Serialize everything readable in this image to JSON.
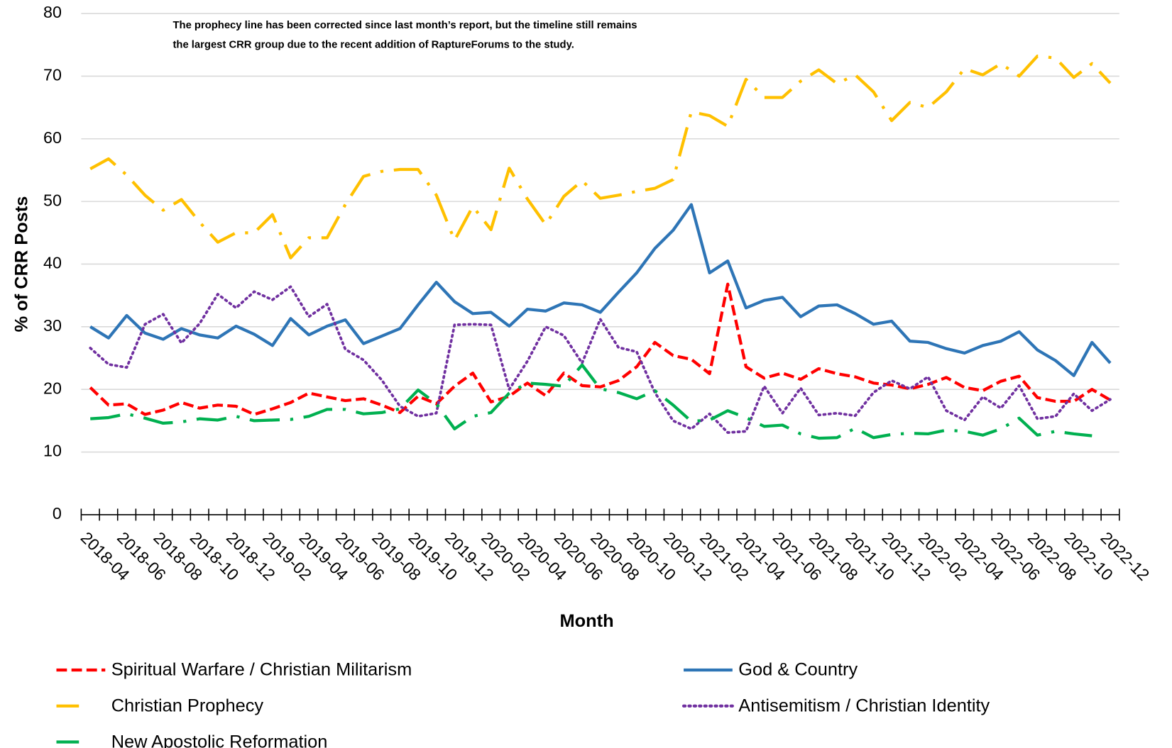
{
  "chart_data": {
    "type": "line",
    "annotation": [
      "The prophecy line has been corrected since last month’s report, but the timeline still remains",
      "the largest CRR group due to the recent addition of RaptureForums to the study."
    ],
    "x_label": "Month",
    "y_label": "% of CRR Posts",
    "categories": [
      "2018-04",
      null,
      "2018-06",
      null,
      "2018-08",
      null,
      "2018-10",
      null,
      "2018-12",
      null,
      "2019-02",
      null,
      "2019-04",
      null,
      "2019-06",
      null,
      "2019-08",
      null,
      "2019-10",
      null,
      "2019-12",
      null,
      "2020-02",
      null,
      "2020-04",
      null,
      "2020-06",
      null,
      "2020-08",
      null,
      "2020-10",
      null,
      "2020-12",
      null,
      "2021-02",
      null,
      "2021-04",
      null,
      "2021-06",
      null,
      "2021-08",
      null,
      "2021-10",
      null,
      "2021-12",
      null,
      "2022-02",
      null,
      "2022-04",
      null,
      "2022-06",
      null,
      "2022-08",
      null,
      "2022-10",
      null,
      "2022-12"
    ],
    "series": [
      {
        "name": "Spiritual Warfare / Christian Militarism",
        "color": "#ff0000",
        "dash": "dashed",
        "values": [
          20.3,
          17.5,
          17.7,
          16,
          16.7,
          17.9,
          17,
          17.5,
          17.3,
          16,
          16.9,
          17.9,
          19.4,
          18.8,
          18.2,
          18.5,
          17.5,
          16.3,
          18.9,
          17.7,
          20.5,
          22.6,
          18,
          18.9,
          21,
          19,
          22.6,
          20.6,
          20.4,
          21.4,
          23.6,
          27.5,
          25.4,
          24.8,
          22.5,
          36.8,
          23.6,
          21.8,
          22.6,
          21.6,
          23.3,
          22.5,
          22,
          21,
          20.7,
          20.1,
          20.8,
          21.9,
          20.3,
          19.8,
          21.3,
          22.1,
          18.7,
          18.1,
          18.1,
          20,
          18.3
        ]
      },
      {
        "name": "God & Country",
        "color": "#2e75b6",
        "dash": "solid",
        "values": [
          30,
          28.2,
          31.8,
          29,
          28,
          29.7,
          28.7,
          28.2,
          30.1,
          28.8,
          27,
          31.3,
          28.7,
          30.1,
          31.1,
          27.3,
          28.5,
          29.7,
          33.5,
          37.1,
          34,
          32.1,
          32.3,
          30.1,
          32.8,
          32.5,
          33.8,
          33.5,
          32.3,
          35.5,
          38.6,
          42.5,
          45.4,
          49.5,
          38.6,
          40.5,
          33,
          34.2,
          34.7,
          31.6,
          33.3,
          33.5,
          32.1,
          30.4,
          30.9,
          27.7,
          27.5,
          26.5,
          25.8,
          27,
          27.7,
          29.2,
          26.3,
          24.6,
          22.2,
          27.5,
          24.2
        ]
      },
      {
        "name": "Christian Prophecy",
        "color": "#ffc000",
        "dash": "longdashdot",
        "values": [
          55.2,
          56.8,
          54.2,
          51,
          48.6,
          50.3,
          46.7,
          43.5,
          45,
          45,
          47.9,
          41,
          44.2,
          44.2,
          49.5,
          54,
          54.8,
          55.1,
          55.1,
          51,
          43.8,
          49.2,
          45.5,
          55.3,
          50.4,
          46.3,
          50.8,
          53.3,
          50.5,
          51,
          51.6,
          52.1,
          53.5,
          64.3,
          63.7,
          62,
          69.5,
          66.6,
          66.6,
          69.2,
          71,
          68.8,
          70.2,
          67.5,
          62.9,
          65.8,
          65,
          67.5,
          71.2,
          70.2,
          72,
          70,
          73.2,
          72.9,
          69.8,
          72,
          68.9
        ]
      },
      {
        "name": "Antisemitism / Christian Identity",
        "color": "#7030a0",
        "dash": "dotted",
        "values": [
          26.6,
          24,
          23.5,
          30.4,
          32,
          27.4,
          30.5,
          35.2,
          33,
          35.6,
          34.3,
          36.4,
          31.6,
          33.6,
          26.4,
          24.7,
          21.5,
          17.3,
          15.7,
          16.2,
          30.3,
          30.4,
          30.3,
          20,
          24.5,
          30,
          28.6,
          24.2,
          31.2,
          26.7,
          26,
          19.5,
          15,
          13.7,
          16.1,
          13.1,
          13.3,
          20.5,
          16.2,
          20.2,
          15.9,
          16.2,
          15.8,
          19.5,
          21.4,
          20.1,
          22,
          16.6,
          15.1,
          18.8,
          17,
          20.6,
          15.3,
          15.7,
          19.3,
          16.6,
          18.4
        ]
      },
      {
        "name": "New Apostolic Reformation",
        "color": "#00b050",
        "dash": "longdashdot",
        "values": [
          15.3,
          15.5,
          16.1,
          15.4,
          14.6,
          14.8,
          15.3,
          15.1,
          15.7,
          15,
          15.1,
          15.2,
          15.7,
          16.8,
          16.8,
          16.1,
          16.3,
          16.9,
          19.9,
          17.7,
          13.7,
          15.7,
          16.3,
          19.4,
          21,
          20.8,
          20.5,
          23.9,
          20.1,
          19.5,
          18.5,
          19.8,
          17.5,
          14.9,
          15.1,
          16.6,
          15.5,
          14.1,
          14.3,
          12.9,
          12.2,
          12.3,
          13.8,
          12.3,
          12.8,
          13,
          12.9,
          13.5,
          13.3,
          12.7,
          13.7,
          15.4,
          12.7,
          13.3,
          12.9,
          12.6,
          null
        ]
      }
    ],
    "ylim": [
      0,
      80
    ],
    "yticks": [
      0,
      10,
      20,
      30,
      40,
      50,
      60,
      70,
      80
    ],
    "grid": true
  }
}
